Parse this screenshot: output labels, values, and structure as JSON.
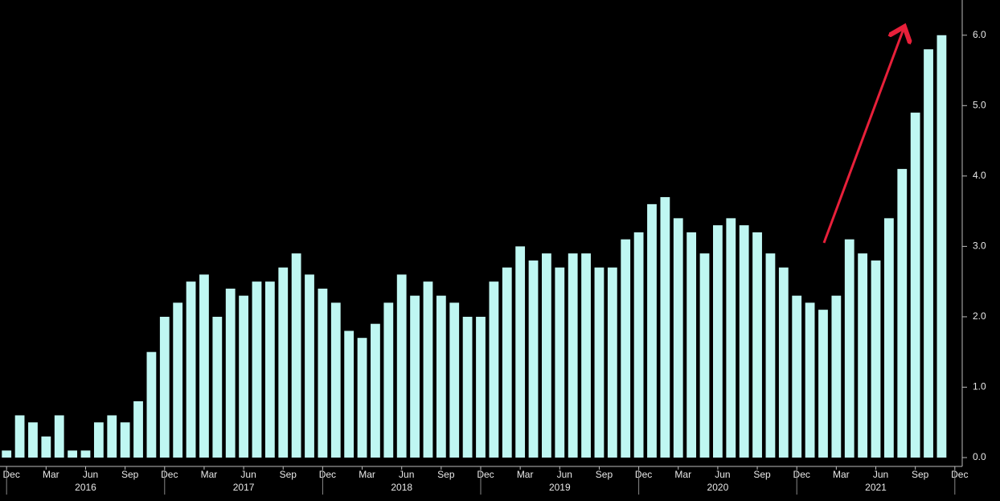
{
  "chart_data": {
    "type": "bar",
    "categories": [
      "Dec",
      null,
      null,
      "Mar",
      null,
      null,
      "Jun",
      null,
      null,
      "Sep",
      null,
      null,
      "Dec",
      null,
      null,
      "Mar",
      null,
      null,
      "Jun",
      null,
      null,
      "Sep",
      null,
      null,
      "Dec",
      null,
      null,
      "Mar",
      null,
      null,
      "Jun",
      null,
      null,
      "Sep",
      null,
      null,
      "Dec",
      null,
      null,
      "Mar",
      null,
      null,
      "Jun",
      null,
      null,
      "Sep",
      null,
      null,
      "Dec",
      null,
      null,
      "Mar",
      null,
      null,
      "Jun",
      null,
      null,
      "Sep",
      null,
      null,
      "Dec",
      null,
      null,
      "Mar",
      null,
      null,
      "Jun",
      null,
      null,
      "Sep",
      null,
      null,
      "Dec"
    ],
    "values": [
      0.1,
      0.6,
      0.5,
      0.3,
      0.6,
      0.1,
      0.1,
      0.5,
      0.6,
      0.5,
      0.8,
      1.5,
      2.0,
      2.2,
      2.5,
      2.6,
      2.0,
      2.4,
      2.3,
      2.5,
      2.5,
      2.7,
      2.9,
      2.6,
      2.4,
      2.2,
      1.8,
      1.7,
      1.9,
      2.2,
      2.6,
      2.3,
      2.5,
      2.3,
      2.2,
      2.0,
      2.0,
      2.5,
      2.7,
      3.0,
      2.8,
      2.9,
      2.7,
      2.9,
      2.9,
      2.7,
      2.7,
      3.1,
      3.2,
      3.6,
      3.7,
      3.4,
      3.2,
      2.9,
      3.3,
      3.4,
      3.3,
      3.2,
      2.9,
      2.7,
      2.3,
      2.2,
      2.1,
      2.3,
      3.1,
      2.9,
      2.8,
      3.4,
      4.1,
      4.9,
      5.8,
      6.0,
      null
    ],
    "years": [
      "2016",
      "2017",
      "2018",
      "2019",
      "2020",
      "2021"
    ],
    "color": "#bff7f2",
    "ylim": [
      0,
      6.5
    ],
    "yticks": [
      {
        "value": 0,
        "label": "0.0"
      },
      {
        "value": 1,
        "label": "1.0"
      },
      {
        "value": 2,
        "label": "2.0"
      },
      {
        "value": 3,
        "label": "3.0"
      },
      {
        "value": 4,
        "label": "4.0"
      },
      {
        "value": 5,
        "label": "5.0"
      },
      {
        "value": 6,
        "label": "6.0"
      }
    ]
  }
}
